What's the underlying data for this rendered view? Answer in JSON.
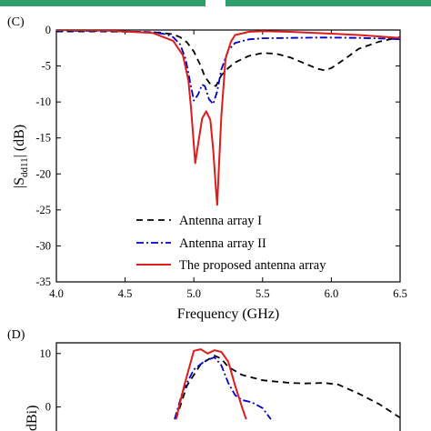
{
  "colors": {
    "banner": "#2e9e6a",
    "series_1": "#000000",
    "series_2": "#0000cc",
    "series_3": "#dd1c1c"
  },
  "chart_data": [
    {
      "type": "line",
      "panel_label": "(C)",
      "title": "",
      "xlabel": "Frequency (GHz)",
      "ylabel_main": "|S",
      "ylabel_sub": "dd11",
      "ylabel_tail": "| (dB)",
      "xlim": [
        4.0,
        6.5
      ],
      "ylim": [
        -35,
        0
      ],
      "xticks": [
        "4.0",
        "4.5",
        "5.0",
        "5.5",
        "6.0",
        "6.5"
      ],
      "xtick_values": [
        4.0,
        4.5,
        5.0,
        5.5,
        6.0,
        6.5
      ],
      "yticks": [
        "0",
        "-5",
        "-10",
        "-15",
        "-20",
        "-25",
        "-30",
        "-35"
      ],
      "ytick_values": [
        0,
        -5,
        -10,
        -15,
        -20,
        -25,
        -30,
        -35
      ],
      "legend_position": "bottom-right",
      "grid": false,
      "series": [
        {
          "name": "Antenna array I",
          "color": "#000000",
          "dash": "dashed",
          "x": [
            4.0,
            4.3,
            4.6,
            4.75,
            4.85,
            4.9,
            4.95,
            5.0,
            5.05,
            5.08,
            5.12,
            5.16,
            5.2,
            5.25,
            5.3,
            5.4,
            5.5,
            5.6,
            5.7,
            5.8,
            5.9,
            5.95,
            6.0,
            6.1,
            6.2,
            6.35,
            6.5
          ],
          "y": [
            -0.2,
            -0.2,
            -0.25,
            -0.35,
            -0.6,
            -1.0,
            -1.7,
            -3.0,
            -5.0,
            -6.5,
            -7.5,
            -7.8,
            -6.3,
            -5.3,
            -4.5,
            -3.6,
            -3.2,
            -3.3,
            -3.8,
            -4.6,
            -5.4,
            -5.6,
            -5.3,
            -4.0,
            -2.6,
            -1.6,
            -1.0
          ]
        },
        {
          "name": "Antenna array II",
          "color": "#0000cc",
          "dash": "dashdot",
          "x": [
            4.0,
            4.4,
            4.7,
            4.8,
            4.85,
            4.9,
            4.94,
            4.97,
            5.0,
            5.03,
            5.06,
            5.08,
            5.11,
            5.14,
            5.17,
            5.2,
            5.25,
            5.3,
            5.4,
            5.5,
            5.7,
            5.9,
            6.0,
            6.2,
            6.4,
            6.5
          ],
          "y": [
            -0.1,
            -0.15,
            -0.3,
            -0.6,
            -1.0,
            -2.0,
            -4.0,
            -7.0,
            -9.8,
            -9.0,
            -7.6,
            -7.8,
            -9.6,
            -10.3,
            -8.5,
            -5.5,
            -2.8,
            -1.8,
            -1.3,
            -1.15,
            -1.1,
            -1.05,
            -1.05,
            -1.1,
            -1.2,
            -1.3
          ]
        },
        {
          "name": "The proposed antenna array",
          "color": "#dd1c1c",
          "dash": "solid",
          "x": [
            4.0,
            4.4,
            4.7,
            4.85,
            4.92,
            4.96,
            4.98,
            5.0,
            5.01,
            5.03,
            5.06,
            5.09,
            5.12,
            5.14,
            5.16,
            5.17,
            5.18,
            5.2,
            5.23,
            5.27,
            5.3,
            5.4,
            5.5,
            5.7,
            6.0,
            6.2,
            6.5
          ],
          "y": [
            0,
            -0.1,
            -0.4,
            -1.5,
            -3.5,
            -7.0,
            -11.0,
            -16.0,
            -18.5,
            -16.0,
            -12.3,
            -11.3,
            -12.5,
            -16.5,
            -22.0,
            -24.3,
            -20.0,
            -12.0,
            -4.0,
            -1.6,
            -0.7,
            -0.25,
            -0.15,
            -0.25,
            -0.5,
            -0.7,
            -1.1
          ]
        }
      ]
    },
    {
      "type": "line",
      "panel_label": "(D)",
      "title": "",
      "xlabel": "",
      "ylabel": "dBi)",
      "xlim": [
        4.0,
        6.5
      ],
      "ylim": [
        -5,
        12
      ],
      "yticks": [
        "10",
        "0"
      ],
      "ytick_values": [
        10,
        0
      ],
      "grid": false,
      "series": [
        {
          "name": "Antenna array I",
          "color": "#000000",
          "dash": "dashed",
          "x": [
            4.87,
            4.95,
            5.05,
            5.15,
            5.2,
            5.25,
            5.35,
            5.5,
            5.7,
            5.8,
            5.95,
            6.05,
            6.2,
            6.35,
            6.5
          ],
          "y": [
            -2.3,
            4.0,
            8.0,
            9.6,
            9.0,
            7.5,
            6.0,
            5.0,
            4.5,
            4.4,
            4.5,
            4.2,
            2.5,
            0.5,
            -2.0
          ]
        },
        {
          "name": "Antenna array II",
          "color": "#0000cc",
          "dash": "dashdot",
          "x": [
            4.86,
            4.92,
            5.0,
            5.08,
            5.15,
            5.2,
            5.25,
            5.3,
            5.35,
            5.42,
            5.5,
            5.56
          ],
          "y": [
            -2.3,
            3.0,
            7.0,
            8.6,
            9.3,
            7.8,
            4.5,
            2.2,
            1.3,
            0.9,
            -0.2,
            -2.3
          ]
        },
        {
          "name": "The proposed antenna array",
          "color": "#dd1c1c",
          "dash": "solid",
          "x": [
            4.87,
            4.93,
            5.0,
            5.05,
            5.1,
            5.15,
            5.2,
            5.25,
            5.3,
            5.35,
            5.38
          ],
          "y": [
            -2.3,
            4.0,
            10.5,
            10.8,
            10.0,
            10.6,
            10.3,
            8.5,
            4.0,
            0.0,
            -2.3
          ]
        }
      ]
    }
  ]
}
